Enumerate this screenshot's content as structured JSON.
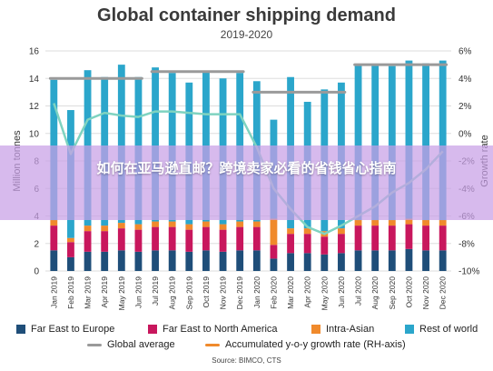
{
  "title": "Global container shipping demand",
  "subtitle": "2019-2020",
  "overlay_text": "如何在亚马逊直邮？跨境卖家必看的省钱省心指南",
  "source": "Source: BIMCO, CTS",
  "colors": {
    "far_east_europe": "#1f4e79",
    "far_east_na": "#c8175d",
    "intra_asia": "#f08a2c",
    "rest_of_world": "#2ba6cb",
    "global_average": "#9a9a9a",
    "growth_rate": "#7fd3c0",
    "banner": "#c8a0e6"
  },
  "legend": [
    {
      "label": "Far East to Europe",
      "kind": "box",
      "color_key": "far_east_europe"
    },
    {
      "label": "Far East to North America",
      "kind": "box",
      "color_key": "far_east_na"
    },
    {
      "label": "Intra-Asian",
      "kind": "box",
      "color_key": "intra_asia"
    },
    {
      "label": "Rest of world",
      "kind": "box",
      "color_key": "rest_of_world"
    },
    {
      "label": "Global average",
      "kind": "line",
      "color_key": "global_average"
    },
    {
      "label": "Accumulated y-o-y growth rate (RH-axis)",
      "kind": "line",
      "color_key": "intra_asia"
    }
  ],
  "chart_data": {
    "type": "bar",
    "stacked": true,
    "title": "Global container shipping demand",
    "subtitle": "2019-2020",
    "ylabel": "Million tonnes",
    "y2label": "Growth rate",
    "ylim": [
      0,
      16
    ],
    "yticks": [
      0,
      2,
      4,
      6,
      8,
      10,
      12,
      14,
      16
    ],
    "y2lim": [
      -10,
      6
    ],
    "y2ticks": [
      "6%",
      "4%",
      "2%",
      "0%",
      "-2%",
      "-4%",
      "-6%",
      "-8%",
      "-10%"
    ],
    "categories": [
      "Jan 2019",
      "Feb 2019",
      "Mar 2019",
      "Apr 2019",
      "May 2019",
      "Jun 2019",
      "Jul 2019",
      "Aug 2019",
      "Sep 2019",
      "Oct 2019",
      "Nov 2019",
      "Dec 2019",
      "Jan 2020",
      "Feb 2020",
      "Mar 2020",
      "Apr 2020",
      "May 2020",
      "Jun 2020",
      "Jul 2020",
      "Aug 2020",
      "Sep 2020",
      "Oct 2020",
      "Nov 2020",
      "Dec 2020"
    ],
    "series": [
      {
        "name": "Far East to Europe",
        "color_key": "far_east_europe",
        "values": [
          1.5,
          1.0,
          1.4,
          1.4,
          1.5,
          1.4,
          1.5,
          1.5,
          1.4,
          1.5,
          1.4,
          1.5,
          1.5,
          0.9,
          1.3,
          1.3,
          1.2,
          1.3,
          1.5,
          1.5,
          1.5,
          1.6,
          1.5,
          1.5
        ]
      },
      {
        "name": "Far East to North America",
        "color_key": "far_east_na",
        "values": [
          1.8,
          1.1,
          1.5,
          1.5,
          1.6,
          1.6,
          1.7,
          1.7,
          1.6,
          1.7,
          1.6,
          1.7,
          1.7,
          1.0,
          1.4,
          1.4,
          1.3,
          1.4,
          1.8,
          1.8,
          1.8,
          1.8,
          1.8,
          1.8
        ]
      },
      {
        "name": "Intra-Asian",
        "color_key": "intra_asia",
        "values": [
          0.4,
          0.3,
          0.4,
          0.4,
          0.4,
          0.4,
          0.4,
          0.4,
          0.4,
          0.4,
          0.4,
          0.4,
          0.4,
          1.9,
          0.4,
          0.4,
          0.4,
          0.4,
          0.4,
          0.4,
          0.4,
          0.4,
          0.4,
          0.4
        ]
      },
      {
        "name": "Rest of world",
        "color_key": "rest_of_world",
        "values": [
          10.2,
          9.3,
          11.3,
          10.8,
          11.5,
          10.7,
          11.2,
          10.8,
          10.3,
          10.9,
          10.6,
          10.8,
          10.2,
          7.2,
          11.0,
          9.2,
          10.3,
          10.6,
          11.3,
          11.3,
          11.2,
          11.5,
          11.4,
          11.6
        ]
      }
    ],
    "global_average": [
      {
        "from": "Jan 2019",
        "to": "Jun 2019",
        "value": 14.0
      },
      {
        "from": "Jul 2019",
        "to": "Dec 2019",
        "value": 14.5
      },
      {
        "from": "Jan 2020",
        "to": "Jun 2020",
        "value": 13.0
      },
      {
        "from": "Jul 2020",
        "to": "Dec 2020",
        "value": 15.0
      }
    ],
    "growth_rate_pct": [
      2.2,
      -1.5,
      1.0,
      1.5,
      1.3,
      1.2,
      1.6,
      1.6,
      1.5,
      1.4,
      1.4,
      1.4,
      -1.0,
      -4.0,
      -5.5,
      -6.8,
      -7.3,
      -6.7,
      -6.0,
      -5.3,
      -4.3,
      -3.6,
      -2.6,
      -1.3
    ],
    "grid": true,
    "legend_position": "bottom"
  }
}
